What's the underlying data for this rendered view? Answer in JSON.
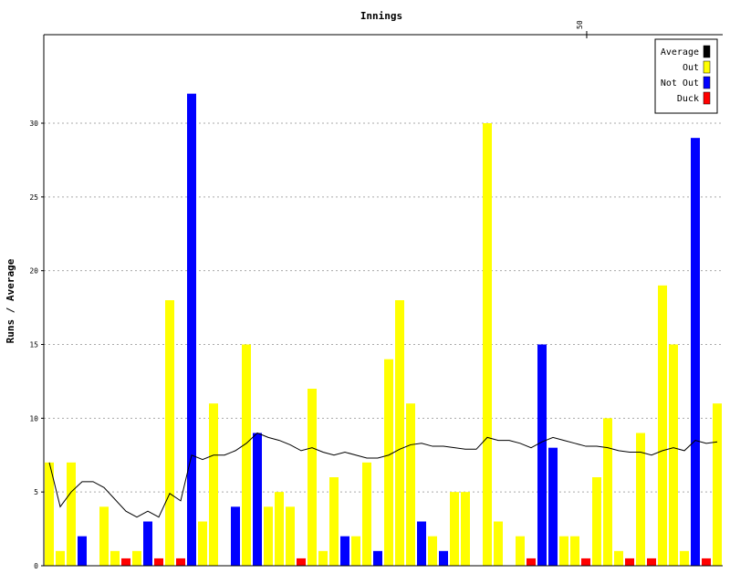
{
  "chart_data": {
    "type": "bar",
    "title": "Innings",
    "xlabel": "",
    "ylabel": "Runs / Average",
    "ylim": [
      0,
      36
    ],
    "yticks": [
      0,
      5,
      10,
      15,
      20,
      25,
      30
    ],
    "x_top_ticks": [
      50
    ],
    "grid": "horizontal dotted",
    "legend_placement": "top-right",
    "legend": [
      {
        "name": "Average",
        "color": "#000000"
      },
      {
        "name": "Out",
        "color": "#ffff00"
      },
      {
        "name": "Not Out",
        "color": "#0000ff"
      },
      {
        "name": "Duck",
        "color": "#ff0000"
      }
    ],
    "innings": [
      {
        "runs": 7,
        "status": "out"
      },
      {
        "runs": 1,
        "status": "out"
      },
      {
        "runs": 7,
        "status": "out"
      },
      {
        "runs": 2,
        "status": "not_out"
      },
      {
        "runs": 0,
        "status": "none"
      },
      {
        "runs": 4,
        "status": "out"
      },
      {
        "runs": 1,
        "status": "out"
      },
      {
        "runs": 0,
        "status": "duck"
      },
      {
        "runs": 1,
        "status": "out"
      },
      {
        "runs": 3,
        "status": "not_out"
      },
      {
        "runs": 0,
        "status": "duck"
      },
      {
        "runs": 18,
        "status": "out"
      },
      {
        "runs": 0,
        "status": "duck"
      },
      {
        "runs": 32,
        "status": "not_out"
      },
      {
        "runs": 3,
        "status": "out"
      },
      {
        "runs": 11,
        "status": "out"
      },
      {
        "runs": 0,
        "status": "none"
      },
      {
        "runs": 4,
        "status": "not_out"
      },
      {
        "runs": 15,
        "status": "out"
      },
      {
        "runs": 9,
        "status": "not_out"
      },
      {
        "runs": 4,
        "status": "out"
      },
      {
        "runs": 5,
        "status": "out"
      },
      {
        "runs": 4,
        "status": "out"
      },
      {
        "runs": 0,
        "status": "duck"
      },
      {
        "runs": 12,
        "status": "out"
      },
      {
        "runs": 1,
        "status": "out"
      },
      {
        "runs": 6,
        "status": "out"
      },
      {
        "runs": 2,
        "status": "not_out"
      },
      {
        "runs": 2,
        "status": "out"
      },
      {
        "runs": 7,
        "status": "out"
      },
      {
        "runs": 1,
        "status": "not_out"
      },
      {
        "runs": 14,
        "status": "out"
      },
      {
        "runs": 18,
        "status": "out"
      },
      {
        "runs": 11,
        "status": "out"
      },
      {
        "runs": 3,
        "status": "not_out"
      },
      {
        "runs": 2,
        "status": "out"
      },
      {
        "runs": 1,
        "status": "not_out"
      },
      {
        "runs": 5,
        "status": "out"
      },
      {
        "runs": 5,
        "status": "out"
      },
      {
        "runs": 0,
        "status": "none"
      },
      {
        "runs": 30,
        "status": "out"
      },
      {
        "runs": 3,
        "status": "out"
      },
      {
        "runs": 0,
        "status": "none"
      },
      {
        "runs": 2,
        "status": "out"
      },
      {
        "runs": 0,
        "status": "duck"
      },
      {
        "runs": 15,
        "status": "not_out"
      },
      {
        "runs": 8,
        "status": "not_out"
      },
      {
        "runs": 2,
        "status": "out"
      },
      {
        "runs": 2,
        "status": "out"
      },
      {
        "runs": 0,
        "status": "duck"
      },
      {
        "runs": 6,
        "status": "out"
      },
      {
        "runs": 10,
        "status": "out"
      },
      {
        "runs": 1,
        "status": "out"
      },
      {
        "runs": 0,
        "status": "duck"
      },
      {
        "runs": 9,
        "status": "out"
      },
      {
        "runs": 0,
        "status": "duck"
      },
      {
        "runs": 19,
        "status": "out"
      },
      {
        "runs": 15,
        "status": "out"
      },
      {
        "runs": 1,
        "status": "out"
      },
      {
        "runs": 29,
        "status": "not_out"
      },
      {
        "runs": 0,
        "status": "duck"
      },
      {
        "runs": 11,
        "status": "out"
      }
    ],
    "average": [
      7.0,
      4.0,
      5.0,
      5.7,
      5.7,
      5.3,
      4.5,
      3.7,
      3.3,
      3.7,
      3.3,
      4.9,
      4.4,
      7.5,
      7.2,
      7.5,
      7.5,
      7.8,
      8.3,
      9.0,
      8.7,
      8.5,
      8.2,
      7.8,
      8.0,
      7.7,
      7.5,
      7.7,
      7.5,
      7.3,
      7.3,
      7.5,
      7.9,
      8.2,
      8.3,
      8.1,
      8.1,
      8.0,
      7.9,
      7.9,
      8.7,
      8.5,
      8.5,
      8.3,
      8.0,
      8.4,
      8.7,
      8.5,
      8.3,
      8.1,
      8.1,
      8.0,
      7.8,
      7.7,
      7.7,
      7.5,
      7.8,
      8.0,
      7.8,
      8.5,
      8.3,
      8.4
    ]
  }
}
